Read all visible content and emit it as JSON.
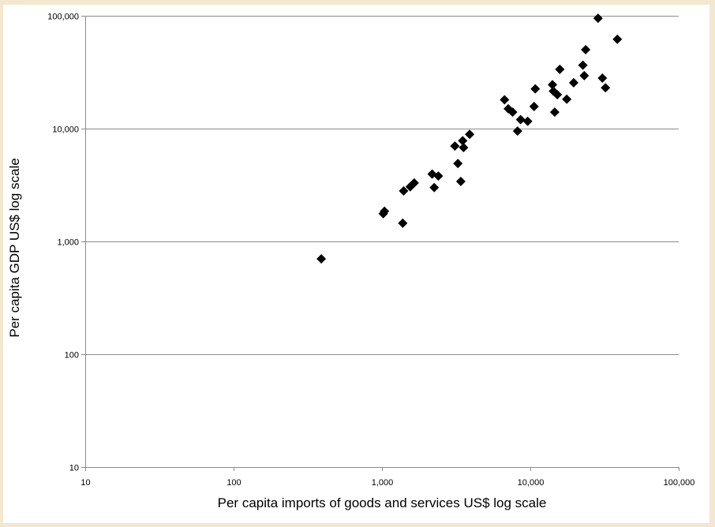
{
  "chart_data": {
    "type": "scatter",
    "title": "",
    "xlabel": "Per capita imports of goods and services US$ log scale",
    "ylabel": "Per capita GDP US$ log scale",
    "xscale": "log",
    "yscale": "log",
    "xlim": [
      10,
      100000
    ],
    "ylim": [
      10,
      100000
    ],
    "x_ticks": [
      10,
      100,
      1000,
      10000,
      100000
    ],
    "y_ticks": [
      10,
      100,
      1000,
      10000,
      100000
    ],
    "x_tick_labels": [
      "10",
      "100",
      "1,000",
      "10,000",
      "100,000"
    ],
    "y_tick_labels": [
      "10",
      "100",
      "1,000",
      "10,000",
      "100,000"
    ],
    "grid": "horizontal major",
    "legend": "none",
    "marker": "diamond",
    "marker_color": "#000000",
    "points": [
      {
        "x": 390,
        "y": 700
      },
      {
        "x": 1020,
        "y": 1760
      },
      {
        "x": 1040,
        "y": 1850
      },
      {
        "x": 1380,
        "y": 1450
      },
      {
        "x": 1400,
        "y": 2800
      },
      {
        "x": 1550,
        "y": 3050
      },
      {
        "x": 1650,
        "y": 3300
      },
      {
        "x": 2180,
        "y": 3950
      },
      {
        "x": 2250,
        "y": 3000
      },
      {
        "x": 2400,
        "y": 3800
      },
      {
        "x": 3100,
        "y": 7000
      },
      {
        "x": 3250,
        "y": 4900
      },
      {
        "x": 3400,
        "y": 3400
      },
      {
        "x": 3500,
        "y": 7800
      },
      {
        "x": 3550,
        "y": 6800
      },
      {
        "x": 3900,
        "y": 8900
      },
      {
        "x": 6700,
        "y": 18000
      },
      {
        "x": 7100,
        "y": 15000
      },
      {
        "x": 7600,
        "y": 14000
      },
      {
        "x": 8200,
        "y": 9500
      },
      {
        "x": 8600,
        "y": 12000
      },
      {
        "x": 9600,
        "y": 11600
      },
      {
        "x": 10600,
        "y": 15700
      },
      {
        "x": 10800,
        "y": 22500
      },
      {
        "x": 14100,
        "y": 24500
      },
      {
        "x": 14300,
        "y": 21500
      },
      {
        "x": 14600,
        "y": 14000
      },
      {
        "x": 15200,
        "y": 20000
      },
      {
        "x": 15800,
        "y": 33500
      },
      {
        "x": 17600,
        "y": 18200
      },
      {
        "x": 19600,
        "y": 25500
      },
      {
        "x": 22600,
        "y": 36500
      },
      {
        "x": 23100,
        "y": 29500
      },
      {
        "x": 23600,
        "y": 50000
      },
      {
        "x": 28600,
        "y": 95000
      },
      {
        "x": 30600,
        "y": 28000
      },
      {
        "x": 32100,
        "y": 23000
      },
      {
        "x": 38600,
        "y": 62000
      }
    ]
  }
}
